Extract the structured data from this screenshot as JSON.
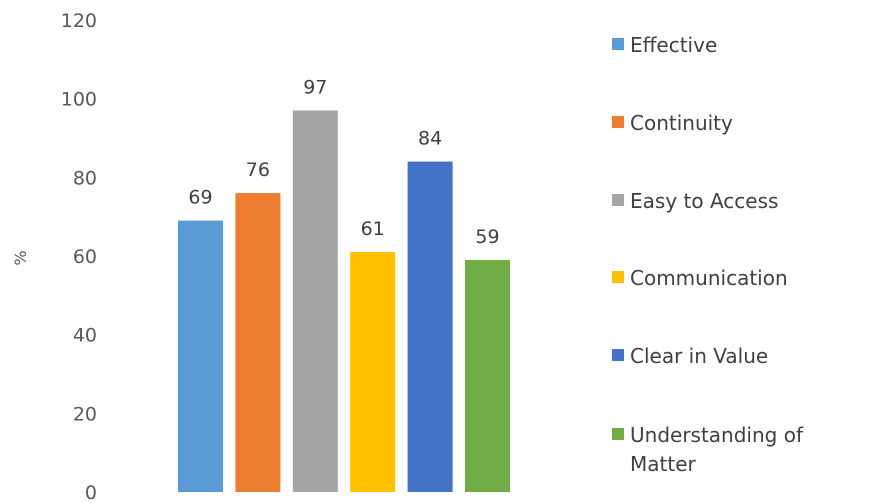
{
  "chart_data": {
    "type": "bar",
    "title": "",
    "xlabel": "",
    "ylabel": "%",
    "ylim": [
      0,
      120
    ],
    "yticks": [
      0,
      20,
      40,
      60,
      80,
      100,
      120
    ],
    "grid": false,
    "legend_position": "right",
    "categories": [
      "Effective",
      "Continuity",
      "Easy to Access",
      "Communication",
      "Clear in Value",
      "Understanding of Matter"
    ],
    "values": [
      69,
      76,
      97,
      61,
      84,
      59
    ],
    "colors": [
      "#5b9bd5",
      "#ed7d31",
      "#a5a5a5",
      "#ffc000",
      "#4472c4",
      "#70ad47"
    ]
  }
}
